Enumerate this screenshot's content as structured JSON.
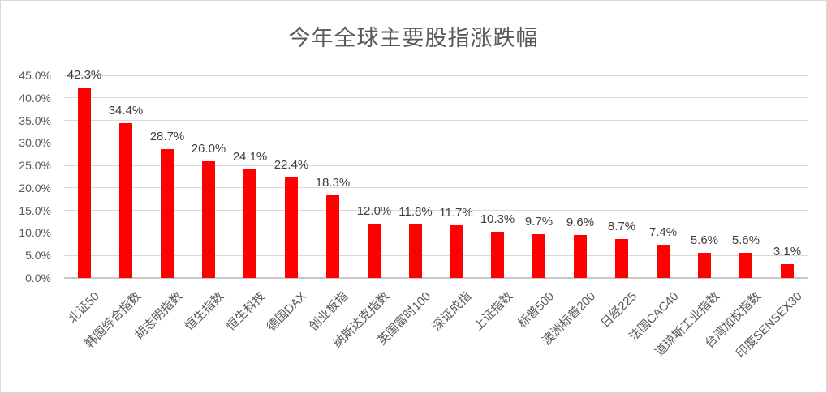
{
  "title": "今年全球主要股指涨跌幅",
  "colors": {
    "bar": "#FF0000",
    "gridline": "#D9D9D9",
    "axis_line": "#C8C8C8",
    "axis_text": "#595959",
    "value_label_text": "#3F3F3F",
    "frame_border": "#D9D9D9",
    "background": "#FFFFFF"
  },
  "chart_data": {
    "type": "bar",
    "title": "今年全球主要股指涨跌幅",
    "categories": [
      "北证50",
      "韩国综合指数",
      "胡志明指数",
      "恒生指数",
      "恒生科技",
      "德国DAX",
      "创业板指",
      "纳斯达克指数",
      "英国富时100",
      "深证成指",
      "上证指数",
      "标普500",
      "澳洲标普200",
      "日经225",
      "法国CAC40",
      "道琼斯工业指数",
      "台湾加权指数",
      "印度SENSEX30"
    ],
    "values": [
      42.3,
      34.4,
      28.7,
      26.0,
      24.1,
      22.4,
      18.3,
      12.0,
      11.8,
      11.7,
      10.3,
      9.7,
      9.6,
      8.7,
      7.4,
      5.6,
      5.6,
      3.1
    ],
    "value_labels": [
      "42.3%",
      "34.4%",
      "28.7%",
      "26.0%",
      "24.1%",
      "22.4%",
      "18.3%",
      "12.0%",
      "11.8%",
      "11.7%",
      "10.3%",
      "9.7%",
      "9.6%",
      "8.7%",
      "7.4%",
      "5.6%",
      "5.6%",
      "3.1%"
    ],
    "xlabel": "",
    "ylabel": "",
    "ylim": [
      0,
      45
    ],
    "ytick_step": 5,
    "ytick_labels": [
      "0.0%",
      "5.0%",
      "10.0%",
      "15.0%",
      "20.0%",
      "25.0%",
      "30.0%",
      "35.0%",
      "40.0%",
      "45.0%"
    ],
    "grid": true,
    "legend": "none",
    "bar_color": "#FF0000"
  }
}
